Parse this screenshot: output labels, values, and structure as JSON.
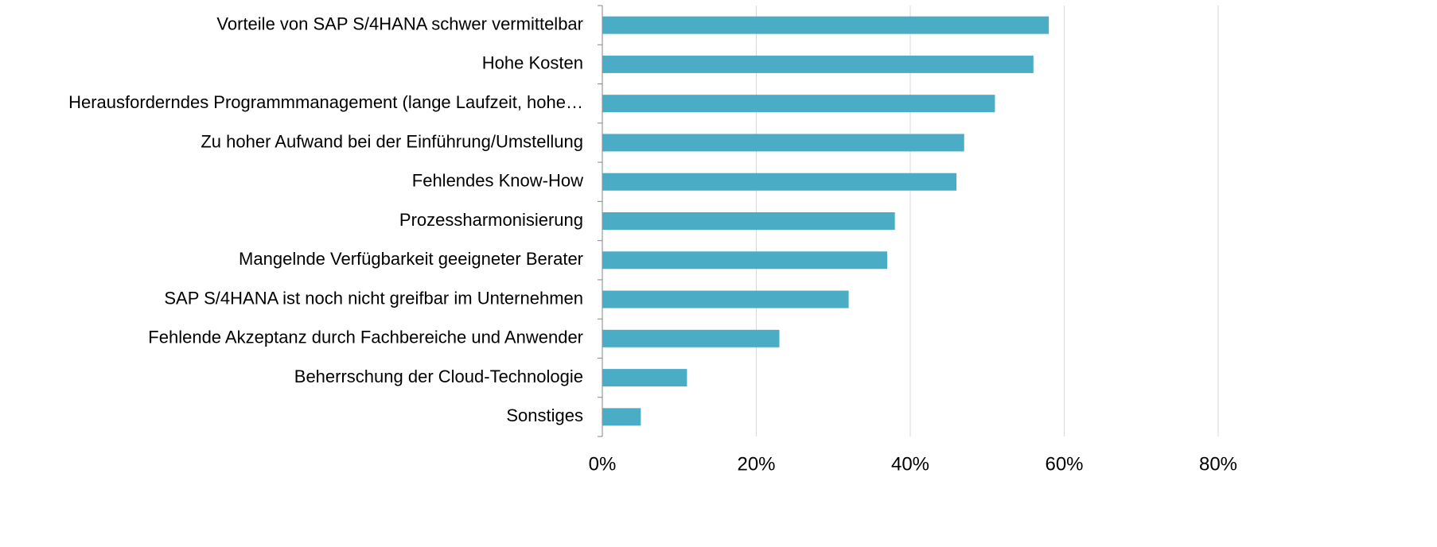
{
  "chart_data": {
    "type": "bar",
    "orientation": "horizontal",
    "categories": [
      "Vorteile von SAP S/4HANA schwer vermittelbar",
      "Hohe Kosten",
      "Herausforderndes Programmmanagement (lange Laufzeit, hohe…",
      "Zu hoher Aufwand bei der Einführung/Umstellung",
      "Fehlendes Know-How",
      "Prozessharmonisierung",
      "Mangelnde Verfügbarkeit geeigneter Berater",
      "SAP S/4HANA ist noch nicht greifbar im Unternehmen",
      "Fehlende Akzeptanz durch Fachbereiche und Anwender",
      "Beherrschung der Cloud-Technologie",
      "Sonstiges"
    ],
    "values": [
      58,
      56,
      51,
      47,
      46,
      38,
      37,
      32,
      23,
      11,
      5
    ],
    "color": "#4bacc6",
    "xlim": [
      0,
      80
    ],
    "xticks": [
      {
        "value": 0,
        "label": "0%"
      },
      {
        "value": 20,
        "label": "20%"
      },
      {
        "value": 40,
        "label": "40%"
      },
      {
        "value": 60,
        "label": "60%"
      },
      {
        "value": 80,
        "label": "80%"
      }
    ],
    "grid": true
  }
}
